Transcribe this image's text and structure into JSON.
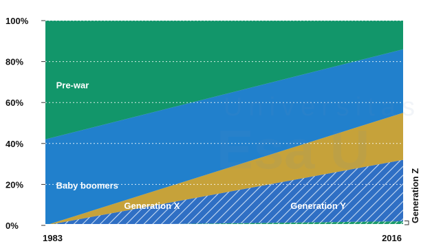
{
  "chart_data": {
    "type": "area",
    "stacked": true,
    "percent": true,
    "title": "",
    "xlabel": "",
    "ylabel": "",
    "x": [
      1983,
      2016
    ],
    "x_tick_labels": [
      "1983",
      "2016"
    ],
    "ylim": [
      0,
      100
    ],
    "y_ticks": [
      0,
      20,
      40,
      60,
      80,
      100
    ],
    "y_tick_labels": [
      "0%",
      "20%",
      "40%",
      "60%",
      "80%",
      "100%"
    ],
    "grid": "horizontal dotted",
    "series": [
      {
        "name": "Generation Z",
        "values": [
          0,
          2
        ],
        "color": "#1a9a6a",
        "pattern": "hatched"
      },
      {
        "name": "Generation Y",
        "values": [
          0,
          30
        ],
        "color": "#2f6fc4",
        "pattern": "hatched"
      },
      {
        "name": "Generation X",
        "values": [
          0,
          23
        ],
        "color": "#c6a23a",
        "pattern": "solid"
      },
      {
        "name": "Baby boomers",
        "values": [
          42,
          31
        ],
        "color": "#2180cc",
        "pattern": "solid"
      },
      {
        "name": "Pre-war",
        "values": [
          58,
          14
        ],
        "color": "#12966a",
        "pattern": "solid"
      }
    ]
  },
  "watermark": {
    "line1": "Universitas",
    "line2": "Esa U"
  }
}
